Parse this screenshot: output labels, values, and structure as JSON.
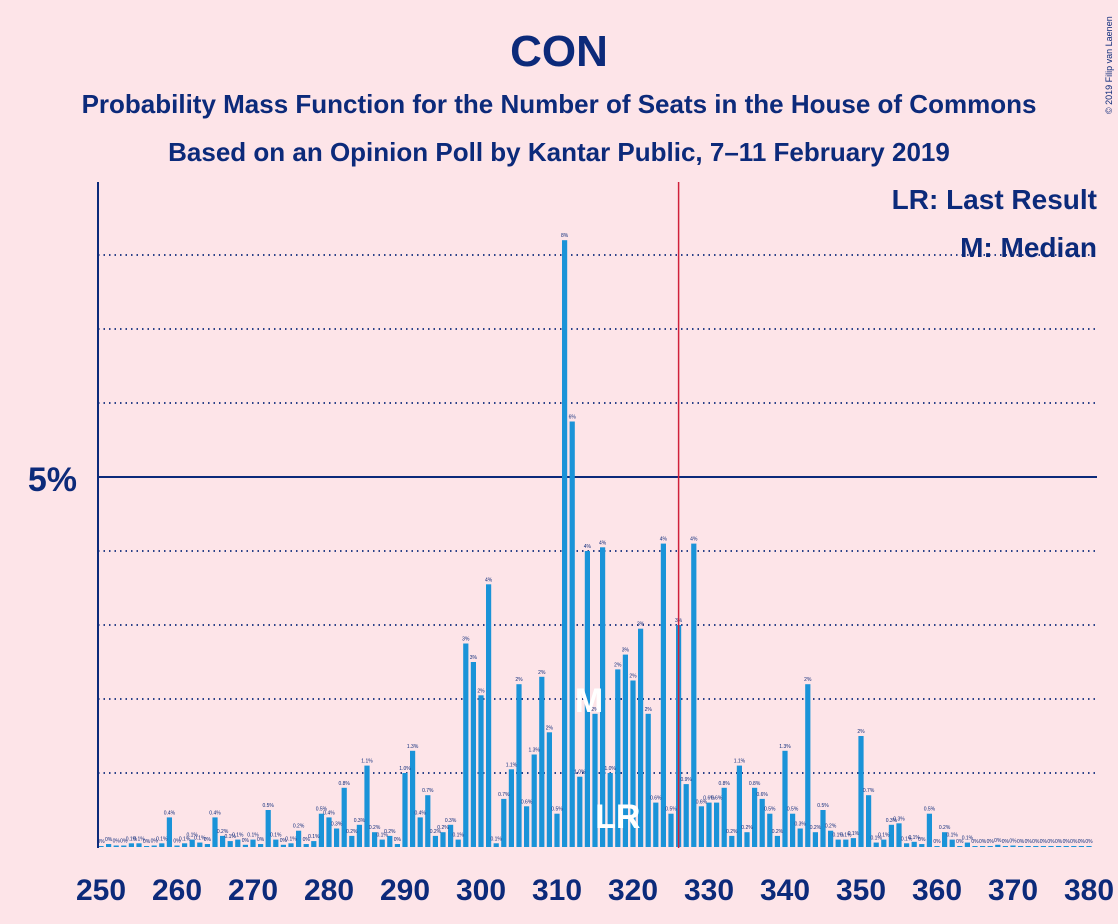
{
  "title": "CON",
  "subtitle1": "Probability Mass Function for the Number of Seats in the House of Commons",
  "subtitle2": "Based on an Opinion Poll by Kantar Public, 7–11 February 2019",
  "credit": "© 2019 Filip van Laenen",
  "legend": {
    "lr": "LR: Last Result",
    "m": "M: Median"
  },
  "y_label": "5%",
  "markers": {
    "median": "M",
    "last_result": "LR"
  },
  "colors": {
    "background": "#fde4e8",
    "bar": "#1a93d8",
    "axis": "#0c2a7a",
    "majority_line": "#d0203a"
  },
  "chart_data": {
    "type": "bar",
    "x_min": 250,
    "x_max": 380,
    "x_ticks": [
      250,
      260,
      270,
      280,
      290,
      300,
      310,
      320,
      330,
      340,
      350,
      360,
      370,
      380
    ],
    "ylim": [
      0,
      8.3
    ],
    "y_dotted_lines": [
      1,
      2,
      3,
      4,
      6,
      7,
      8
    ],
    "y_solid_line": 5,
    "majority_line": 326,
    "median": 315,
    "last_result": 318,
    "x": [
      250,
      251,
      252,
      253,
      254,
      255,
      256,
      257,
      258,
      259,
      260,
      261,
      262,
      263,
      264,
      265,
      266,
      267,
      268,
      269,
      270,
      271,
      272,
      273,
      274,
      275,
      276,
      277,
      278,
      279,
      280,
      281,
      282,
      283,
      284,
      285,
      286,
      287,
      288,
      289,
      290,
      291,
      292,
      293,
      294,
      295,
      296,
      297,
      298,
      299,
      300,
      301,
      302,
      303,
      304,
      305,
      306,
      307,
      308,
      309,
      310,
      311,
      312,
      313,
      314,
      315,
      316,
      317,
      318,
      319,
      320,
      321,
      322,
      323,
      324,
      325,
      326,
      327,
      328,
      329,
      330,
      331,
      332,
      333,
      334,
      335,
      336,
      337,
      338,
      339,
      340,
      341,
      342,
      343,
      344,
      345,
      346,
      347,
      348,
      349,
      350,
      351,
      352,
      353,
      354,
      355,
      356,
      357,
      358,
      359,
      360,
      361,
      362,
      363,
      364,
      365,
      366,
      367,
      368,
      369,
      370,
      371,
      372,
      373,
      374,
      375,
      376,
      377,
      378,
      379,
      380
    ],
    "values": [
      0.01,
      0.04,
      0.02,
      0.02,
      0.05,
      0.05,
      0.01,
      0.02,
      0.05,
      0.4,
      0.02,
      0.05,
      0.1,
      0.06,
      0.04,
      0.4,
      0.15,
      0.08,
      0.1,
      0.03,
      0.1,
      0.04,
      0.5,
      0.1,
      0.03,
      0.05,
      0.22,
      0.04,
      0.08,
      0.45,
      0.4,
      0.25,
      0.8,
      0.15,
      0.3,
      1.1,
      0.2,
      0.1,
      0.15,
      0.04,
      1.0,
      1.3,
      0.4,
      0.7,
      0.15,
      0.2,
      0.3,
      0.1,
      2.75,
      2.5,
      2.05,
      3.55,
      0.05,
      0.65,
      1.05,
      2.2,
      0.55,
      1.25,
      2.3,
      1.55,
      0.45,
      8.2,
      5.75,
      0.95,
      4.0,
      1.8,
      4.05,
      1.0,
      2.4,
      2.6,
      2.25,
      2.95,
      1.8,
      0.6,
      4.1,
      0.45,
      3.0,
      0.85,
      4.1,
      0.55,
      0.6,
      0.6,
      0.8,
      0.15,
      1.1,
      0.2,
      0.8,
      0.65,
      0.45,
      0.15,
      1.3,
      0.45,
      0.25,
      2.2,
      0.2,
      0.5,
      0.22,
      0.1,
      0.1,
      0.12,
      1.5,
      0.7,
      0.06,
      0.1,
      0.3,
      0.32,
      0.05,
      0.07,
      0.04,
      0.45,
      0.01,
      0.2,
      0.1,
      0.01,
      0.06,
      0.01,
      0.01,
      0.01,
      0.03,
      0.01,
      0.02,
      0.01,
      0.01,
      0.01,
      0.01,
      0.01,
      0.01,
      0.01,
      0.01,
      0.01,
      0.01
    ],
    "data_labels": [
      "0%",
      "0%",
      "0%",
      "0%",
      "0.1%",
      "0.1%",
      "0%",
      "0%",
      "0.1%",
      "0.4%",
      "0%",
      "0.1%",
      "0.1%",
      "0.1%",
      "0%",
      "0.4%",
      "0.2%",
      "0.1%",
      "0.1%",
      "0%",
      "0.1%",
      "0%",
      "0.5%",
      "0.1%",
      "0%",
      "0.1%",
      "0.2%",
      "0%",
      "0.1%",
      "0.5%",
      "0.4%",
      "0.3%",
      "0.8%",
      "0.2%",
      "0.3%",
      "1.1%",
      "0.2%",
      "0.1%",
      "0.2%",
      "0%",
      "1.0%",
      "1.3%",
      "0.4%",
      "0.7%",
      "0.2%",
      "0.2%",
      "0.3%",
      "0.1%",
      "3%",
      "3%",
      "2%",
      "4%",
      "0.1%",
      "0.7%",
      "1.1%",
      "2%",
      "0.6%",
      "1.3%",
      "2%",
      "2%",
      "0.5%",
      "8%",
      "6%",
      "1.0%",
      "4%",
      "2%",
      "4%",
      "1.0%",
      "2%",
      "3%",
      "2%",
      "3%",
      "2%",
      "0.6%",
      "4%",
      "0.5%",
      "3%",
      "0.9%",
      "4%",
      "0.6%",
      "0.6%",
      "0.6%",
      "0.8%",
      "0.2%",
      "1.1%",
      "0.2%",
      "0.8%",
      "0.6%",
      "0.5%",
      "0.2%",
      "1.3%",
      "0.5%",
      "0.3%",
      "2%",
      "0.2%",
      "0.5%",
      "0.2%",
      "0.1%",
      "0.1%",
      "0.1%",
      "2%",
      "0.7%",
      "0.1%",
      "0.1%",
      "0.3%",
      "0.3%",
      "0.1%",
      "0.1%",
      "0%",
      "0.5%",
      "0%",
      "0.2%",
      "0.1%",
      "0%",
      "0.1%",
      "0%",
      "0%",
      "0%",
      "0%",
      "0%",
      "0%",
      "0%",
      "0%",
      "0%",
      "0%",
      "0%",
      "0%",
      "0%",
      "0%",
      "0%",
      "0%"
    ]
  }
}
